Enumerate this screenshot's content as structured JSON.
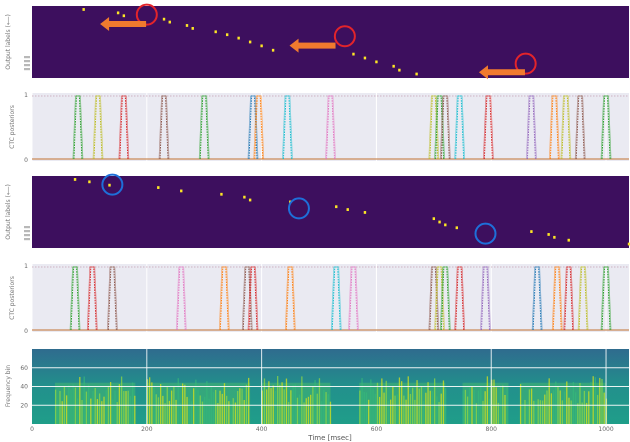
{
  "chart_data": [
    {
      "type": "heatmap",
      "ylabel": "Output labels (⟵)",
      "xlim": [
        0,
        1040
      ],
      "background": "#3d0f5e",
      "dot_color": "#fde725",
      "alignment_points": [
        [
          90,
          0.03
        ],
        [
          150,
          0.1
        ],
        [
          160,
          0.16
        ],
        [
          230,
          0.23
        ],
        [
          240,
          0.29
        ],
        [
          270,
          0.36
        ],
        [
          280,
          0.42
        ],
        [
          320,
          0.49
        ],
        [
          340,
          0.55
        ],
        [
          360,
          0.62
        ],
        [
          380,
          0.7
        ],
        [
          400,
          0.78
        ],
        [
          420,
          0.87
        ],
        [
          560,
          0.95
        ],
        [
          580,
          1.03
        ],
        [
          600,
          1.11
        ],
        [
          630,
          1.2
        ],
        [
          640,
          1.28
        ],
        [
          670,
          1.36
        ]
      ],
      "annotations": [
        {
          "shape": "circle",
          "color": "#e3242b",
          "x": 200,
          "row": 0.12
        },
        {
          "shape": "circle",
          "color": "#e3242b",
          "x": 545,
          "row": 0.42
        },
        {
          "shape": "circle",
          "color": "#e3242b",
          "x": 860,
          "row": 0.8
        },
        {
          "shape": "arrow-left",
          "color": "#f07a2e",
          "x": 150,
          "row": 0.25
        },
        {
          "shape": "arrow-left",
          "color": "#f07a2e",
          "x": 480,
          "row": 0.55
        },
        {
          "shape": "arrow-left",
          "color": "#f07a2e",
          "x": 810,
          "row": 0.92
        }
      ]
    },
    {
      "type": "line",
      "ylabel": "CTC posteriors",
      "ylim": [
        0,
        1
      ],
      "yticks": [
        0,
        1
      ],
      "grid": true,
      "background": "#eaeaf2",
      "spikes": [
        {
          "x": 80,
          "color": "#2ca02c"
        },
        {
          "x": 115,
          "color": "#bcbd22"
        },
        {
          "x": 160,
          "color": "#d62728"
        },
        {
          "x": 230,
          "color": "#8c564b"
        },
        {
          "x": 300,
          "color": "#2ca02c"
        },
        {
          "x": 385,
          "color": "#1f77b4"
        },
        {
          "x": 395,
          "color": "#ff7f0e"
        },
        {
          "x": 445,
          "color": "#17becf"
        },
        {
          "x": 520,
          "color": "#e377c2"
        },
        {
          "x": 700,
          "color": "#bcbd22"
        },
        {
          "x": 710,
          "color": "#2ca02c"
        },
        {
          "x": 720,
          "color": "#8c564b"
        },
        {
          "x": 745,
          "color": "#17becf"
        },
        {
          "x": 795,
          "color": "#d62728"
        },
        {
          "x": 870,
          "color": "#9467bd"
        },
        {
          "x": 910,
          "color": "#ff7f0e"
        },
        {
          "x": 930,
          "color": "#bcbd22"
        },
        {
          "x": 955,
          "color": "#8c564b"
        },
        {
          "x": 1000,
          "color": "#2ca02c"
        }
      ]
    },
    {
      "type": "heatmap",
      "ylabel": "Output labels (⟵)",
      "xlim": [
        0,
        1040
      ],
      "background": "#3d0f5e",
      "dot_color": "#fde725",
      "alignment_points": [
        [
          75,
          0.03
        ],
        [
          100,
          0.08
        ],
        [
          135,
          0.15
        ],
        [
          220,
          0.2
        ],
        [
          260,
          0.27
        ],
        [
          330,
          0.34
        ],
        [
          370,
          0.4
        ],
        [
          380,
          0.46
        ],
        [
          450,
          0.5
        ],
        [
          530,
          0.6
        ],
        [
          550,
          0.66
        ],
        [
          580,
          0.72
        ],
        [
          700,
          0.85
        ],
        [
          710,
          0.92
        ],
        [
          720,
          0.98
        ],
        [
          740,
          1.04
        ],
        [
          870,
          1.12
        ],
        [
          900,
          1.18
        ],
        [
          910,
          1.24
        ],
        [
          935,
          1.3
        ],
        [
          1040,
          1.38
        ]
      ],
      "annotations": [
        {
          "shape": "circle",
          "color": "#1e6fd9",
          "x": 140,
          "row": 0.12
        },
        {
          "shape": "circle",
          "color": "#1e6fd9",
          "x": 465,
          "row": 0.45
        },
        {
          "shape": "circle",
          "color": "#1e6fd9",
          "x": 790,
          "row": 0.8
        }
      ]
    },
    {
      "type": "line",
      "ylabel": "CTC posteriors",
      "ylim": [
        0,
        1
      ],
      "yticks": [
        0,
        1
      ],
      "grid": true,
      "background": "#eaeaf2",
      "spikes": [
        {
          "x": 75,
          "color": "#2ca02c"
        },
        {
          "x": 105,
          "color": "#d62728"
        },
        {
          "x": 140,
          "color": "#8c564b"
        },
        {
          "x": 260,
          "color": "#e377c2"
        },
        {
          "x": 335,
          "color": "#ff7f0e"
        },
        {
          "x": 375,
          "color": "#8c564b"
        },
        {
          "x": 385,
          "color": "#d62728"
        },
        {
          "x": 450,
          "color": "#ff7f0e"
        },
        {
          "x": 530,
          "color": "#17becf"
        },
        {
          "x": 560,
          "color": "#e377c2"
        },
        {
          "x": 700,
          "color": "#8c564b"
        },
        {
          "x": 710,
          "color": "#bcbd22"
        },
        {
          "x": 720,
          "color": "#2ca02c"
        },
        {
          "x": 745,
          "color": "#d62728"
        },
        {
          "x": 790,
          "color": "#9467bd"
        },
        {
          "x": 880,
          "color": "#1f77b4"
        },
        {
          "x": 915,
          "color": "#ff7f0e"
        },
        {
          "x": 935,
          "color": "#d62728"
        },
        {
          "x": 960,
          "color": "#bcbd22"
        },
        {
          "x": 1000,
          "color": "#2ca02c"
        }
      ]
    },
    {
      "type": "heatmap",
      "ylabel": "Frequency bin",
      "xlabel": "Time [msec]",
      "xlim": [
        0,
        1040
      ],
      "ylim": [
        0,
        80
      ],
      "xticks": [
        0,
        200,
        400,
        600,
        800,
        1000
      ],
      "yticks": [
        20,
        40,
        60
      ],
      "colormap": "viridis",
      "speech_segments": [
        [
          40,
          180
        ],
        [
          200,
          380
        ],
        [
          400,
          520
        ],
        [
          570,
          720
        ],
        [
          750,
          830
        ],
        [
          850,
          1000
        ]
      ],
      "time_boundaries": [
        200,
        400,
        800,
        1000
      ]
    }
  ]
}
